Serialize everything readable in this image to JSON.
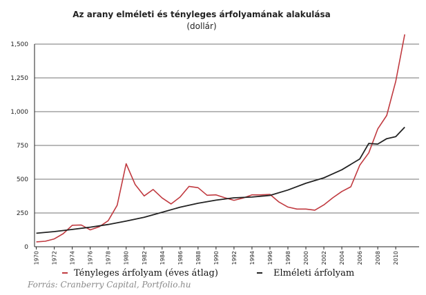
{
  "chart_data": {
    "type": "line",
    "title": "Az arany elméleti és tényleges árfolyamának alakulása",
    "subtitle": "(dollár)",
    "xlabel": "",
    "ylabel": "",
    "ylim": [
      0,
      1500
    ],
    "xlim": [
      1969.8,
      2012.6
    ],
    "y_ticks": [
      0,
      250,
      500,
      750,
      1000,
      1250,
      1500
    ],
    "y_tick_labels": [
      "0",
      "250",
      "500",
      "750",
      "1,000",
      "1,250",
      "1,500"
    ],
    "x_ticks": [
      1970,
      1972,
      1974,
      1976,
      1978,
      1980,
      1982,
      1984,
      1986,
      1988,
      1990,
      1992,
      1994,
      1996,
      1998,
      2000,
      2002,
      2004,
      2006,
      2008,
      2010
    ],
    "x_tick_labels": [
      "1970",
      "1972",
      "1974",
      "1976",
      "1978",
      "1980",
      "1982",
      "1984",
      "1986",
      "1988",
      "1990",
      "1992",
      "1994",
      "1996",
      "1998",
      "2000",
      "2002",
      "2004",
      "2006",
      "2008",
      "2010"
    ],
    "grid": "horizontal",
    "series": [
      {
        "name": "Tényleges árfolyam (éves átlag)",
        "color": "#c0393f",
        "x": [
          1970,
          1971,
          1972,
          1973,
          1974,
          1975,
          1976,
          1977,
          1978,
          1979,
          1980,
          1981,
          1982,
          1983,
          1984,
          1985,
          1986,
          1987,
          1988,
          1989,
          1990,
          1991,
          1992,
          1993,
          1994,
          1995,
          1996,
          1997,
          1998,
          1999,
          2000,
          2001,
          2002,
          2003,
          2004,
          2005,
          2006,
          2007,
          2008,
          2009,
          2010,
          2011
        ],
        "values": [
          36,
          41,
          58,
          97,
          159,
          161,
          125,
          148,
          193,
          307,
          615,
          460,
          376,
          424,
          361,
          317,
          368,
          447,
          437,
          381,
          384,
          362,
          344,
          360,
          384,
          384,
          388,
          331,
          294,
          279,
          279,
          271,
          310,
          363,
          409,
          444,
          604,
          695,
          872,
          972,
          1225,
          1572
        ]
      },
      {
        "name": "Elméleti árfolyam",
        "color": "#222222",
        "x": [
          1970,
          1972,
          1974,
          1976,
          1978,
          1980,
          1982,
          1984,
          1986,
          1988,
          1990,
          1992,
          1994,
          1996,
          1998,
          2000,
          2002,
          2004,
          2006,
          2007,
          2008,
          2009,
          2010,
          2011
        ],
        "values": [
          100,
          112,
          128,
          145,
          165,
          190,
          218,
          255,
          293,
          322,
          345,
          362,
          368,
          380,
          420,
          470,
          510,
          570,
          650,
          765,
          760,
          800,
          815,
          885
        ]
      }
    ],
    "legend_position": "bottom"
  },
  "source": "Forrás: Cranberry  Capital, Portfolio.hu"
}
